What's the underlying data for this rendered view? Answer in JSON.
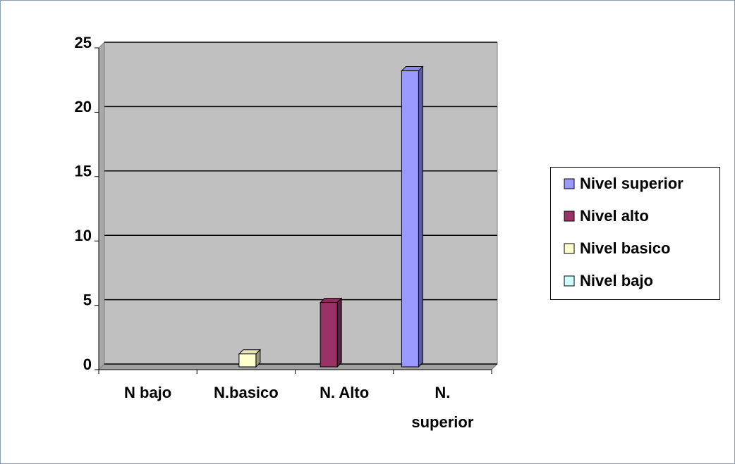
{
  "chart_data": {
    "type": "bar3d",
    "categories": [
      "N bajo",
      "N.basico",
      "N. Alto",
      "N. superior"
    ],
    "series": [
      {
        "name": "Nivel superior",
        "color": "#9999ff",
        "values": [
          0,
          0,
          0,
          23
        ]
      },
      {
        "name": "Nivel alto",
        "color": "#993366",
        "values": [
          0,
          0,
          5,
          0
        ]
      },
      {
        "name": "Nivel basico",
        "color": "#ffffcc",
        "values": [
          0,
          1,
          0,
          0
        ]
      },
      {
        "name": "Nivel bajo",
        "color": "#ccffff",
        "values": [
          0,
          0,
          0,
          0
        ]
      }
    ],
    "ylim": [
      0,
      25
    ],
    "yticks": [
      0,
      5,
      10,
      15,
      20,
      25
    ],
    "grid": true,
    "legend": "right"
  }
}
